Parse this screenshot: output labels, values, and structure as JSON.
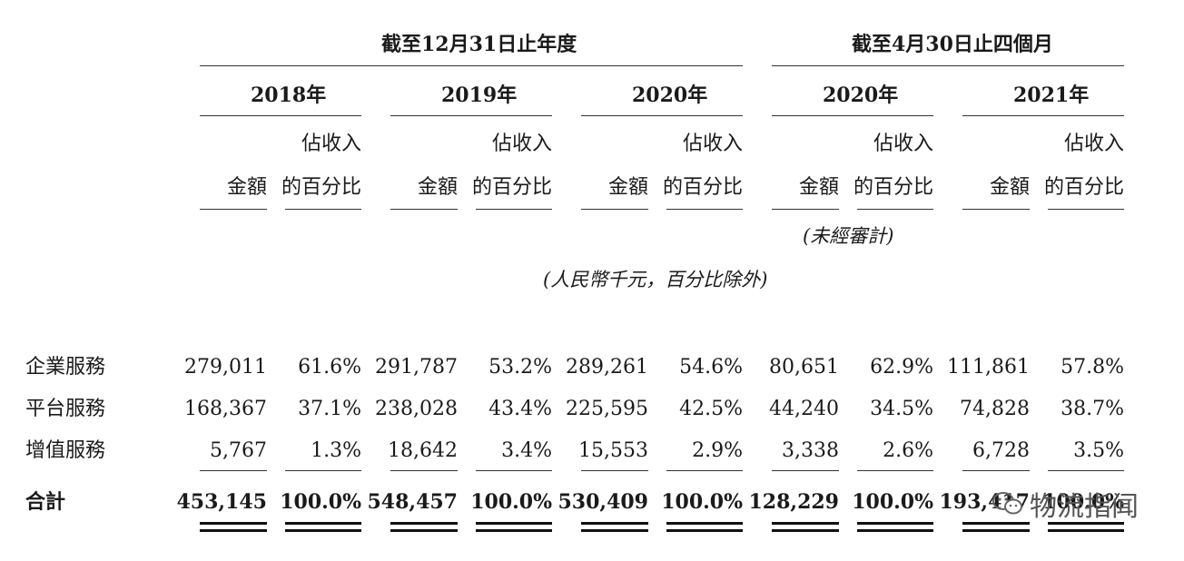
{
  "headers": {
    "group1": "截至12月31日止年度",
    "group2": "截至4月30日止四個月",
    "years": [
      "2018年",
      "2019年",
      "2020年",
      "2020年",
      "2021年"
    ],
    "amount": "金額",
    "pct_line1": "佔收入",
    "pct_line2": "的百分比",
    "unaudited": "(未經審計)",
    "unit_note": "(人民幣千元，百分比除外)"
  },
  "rows": [
    {
      "label": "企業服務",
      "values": [
        "279,011",
        "61.6%",
        "291,787",
        "53.2%",
        "289,261",
        "54.6%",
        "80,651",
        "62.9%",
        "111,861",
        "57.8%"
      ]
    },
    {
      "label": "平台服務",
      "values": [
        "168,367",
        "37.1%",
        "238,028",
        "43.4%",
        "225,595",
        "42.5%",
        "44,240",
        "34.5%",
        "74,828",
        "38.7%"
      ]
    },
    {
      "label": "增值服務",
      "values": [
        "5,767",
        "1.3%",
        "18,642",
        "3.4%",
        "15,553",
        "2.9%",
        "3,338",
        "2.6%",
        "6,728",
        "3.5%"
      ]
    },
    {
      "label": "合計",
      "values": [
        "453,145",
        "100.0%",
        "548,457",
        "100.0%",
        "530,409",
        "100.0%",
        "128,229",
        "100.0%",
        "193,417",
        "100.0%"
      ]
    }
  ],
  "watermark": "物流指闻"
}
